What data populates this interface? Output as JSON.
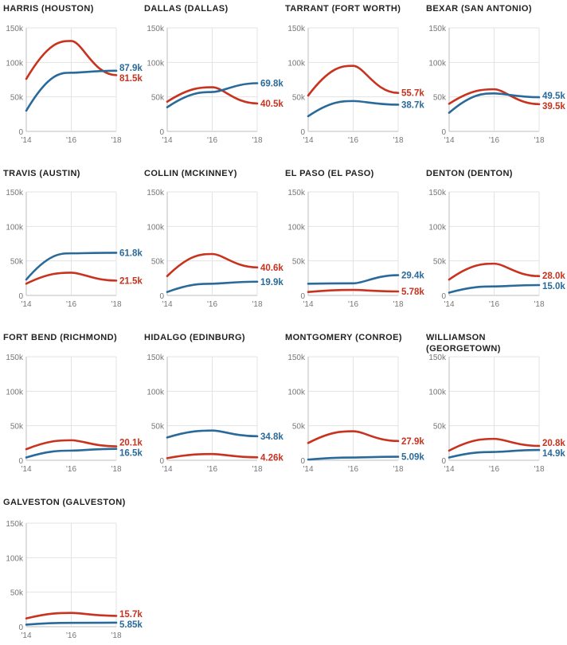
{
  "colors": {
    "red": "#c8321e",
    "blue": "#2a6a9a",
    "grid": "#e3e3e3",
    "axis": "#bdbdbd",
    "tick": "#777777",
    "title": "#222222"
  },
  "chart_data": [
    {
      "type": "line",
      "title": [
        "HARRIS (HOUSTON)"
      ],
      "x": [
        "'14",
        "'16",
        "'18"
      ],
      "ylim": [
        0,
        150000
      ],
      "yticks": [
        "0",
        "50k",
        "100k",
        "150k"
      ],
      "y_tick_values": [
        0,
        50000,
        100000,
        150000
      ],
      "series": [
        {
          "color": "red",
          "values": [
            76000,
            131000,
            81500
          ],
          "label": "81.5k"
        },
        {
          "color": "blue",
          "values": [
            30000,
            85000,
            87900
          ],
          "label": "87.9k"
        }
      ]
    },
    {
      "type": "line",
      "title": [
        "DALLAS (DALLAS)"
      ],
      "x": [
        "'14",
        "'16",
        "'18"
      ],
      "ylim": [
        0,
        150000
      ],
      "series": [
        {
          "color": "red",
          "values": [
            43000,
            64000,
            40500
          ],
          "label": "40.5k"
        },
        {
          "color": "blue",
          "values": [
            35000,
            57000,
            69800
          ],
          "label": "69.8k"
        }
      ]
    },
    {
      "type": "line",
      "title": [
        "TARRANT (FORT WORTH)"
      ],
      "x": [
        "'14",
        "'16",
        "'18"
      ],
      "ylim": [
        0,
        150000
      ],
      "series": [
        {
          "color": "red",
          "values": [
            52000,
            95000,
            55700
          ],
          "label": "55.7k"
        },
        {
          "color": "blue",
          "values": [
            22000,
            44000,
            38700
          ],
          "label": "38.7k"
        }
      ]
    },
    {
      "type": "line",
      "title": [
        "BEXAR (SAN ANTONIO)"
      ],
      "x": [
        "'14",
        "'16",
        "'18"
      ],
      "ylim": [
        0,
        150000
      ],
      "series": [
        {
          "color": "red",
          "values": [
            40000,
            61000,
            39500
          ],
          "label": "39.5k"
        },
        {
          "color": "blue",
          "values": [
            27000,
            55000,
            49500
          ],
          "label": "49.5k"
        }
      ]
    },
    {
      "type": "line",
      "title": [
        "TRAVIS (AUSTIN)"
      ],
      "x": [
        "'14",
        "'16",
        "'18"
      ],
      "ylim": [
        0,
        150000
      ],
      "series": [
        {
          "color": "red",
          "values": [
            17000,
            33000,
            21500
          ],
          "label": "21.5k"
        },
        {
          "color": "blue",
          "values": [
            23000,
            61000,
            61800
          ],
          "label": "61.8k"
        }
      ]
    },
    {
      "type": "line",
      "title": [
        "COLLIN (MCKINNEY)"
      ],
      "x": [
        "'14",
        "'16",
        "'18"
      ],
      "ylim": [
        0,
        150000
      ],
      "series": [
        {
          "color": "red",
          "values": [
            28000,
            60000,
            40600
          ],
          "label": "40.6k"
        },
        {
          "color": "blue",
          "values": [
            5000,
            17000,
            19900
          ],
          "label": "19.9k"
        }
      ]
    },
    {
      "type": "line",
      "title": [
        "EL PASO (EL PASO)"
      ],
      "x": [
        "'14",
        "'16",
        "'18"
      ],
      "ylim": [
        0,
        150000
      ],
      "series": [
        {
          "color": "red",
          "values": [
            5000,
            8000,
            5780
          ],
          "label": "5.78k"
        },
        {
          "color": "blue",
          "values": [
            17000,
            17500,
            29400
          ],
          "label": "29.4k"
        }
      ]
    },
    {
      "type": "line",
      "title": [
        "DENTON (DENTON)"
      ],
      "x": [
        "'14",
        "'16",
        "'18"
      ],
      "ylim": [
        0,
        150000
      ],
      "series": [
        {
          "color": "red",
          "values": [
            23000,
            46000,
            28000
          ],
          "label": "28.0k"
        },
        {
          "color": "blue",
          "values": [
            4000,
            13000,
            15000
          ],
          "label": "15.0k"
        }
      ]
    },
    {
      "type": "line",
      "title": [
        "FORT BEND (RICHMOND)"
      ],
      "x": [
        "'14",
        "'16",
        "'18"
      ],
      "ylim": [
        0,
        150000
      ],
      "series": [
        {
          "color": "red",
          "values": [
            16000,
            29000,
            20100
          ],
          "label": "20.1k"
        },
        {
          "color": "blue",
          "values": [
            4000,
            14000,
            16500
          ],
          "label": "16.5k"
        }
      ]
    },
    {
      "type": "line",
      "title": [
        "HIDALGO (EDINBURG)"
      ],
      "x": [
        "'14",
        "'16",
        "'18"
      ],
      "ylim": [
        0,
        150000
      ],
      "series": [
        {
          "color": "red",
          "values": [
            3000,
            9000,
            4260
          ],
          "label": "4.26k"
        },
        {
          "color": "blue",
          "values": [
            33000,
            43000,
            34800
          ],
          "label": "34.8k"
        }
      ]
    },
    {
      "type": "line",
      "title": [
        "MONTGOMERY (CONROE)"
      ],
      "x": [
        "'14",
        "'16",
        "'18"
      ],
      "ylim": [
        0,
        150000
      ],
      "series": [
        {
          "color": "red",
          "values": [
            25000,
            42000,
            27900
          ],
          "label": "27.9k"
        },
        {
          "color": "blue",
          "values": [
            1000,
            4000,
            5090
          ],
          "label": "5.09k"
        }
      ]
    },
    {
      "type": "line",
      "title": [
        "WILLIAMSON",
        "(GEORGETOWN)"
      ],
      "x": [
        "'14",
        "'16",
        "'18"
      ],
      "ylim": [
        0,
        150000
      ],
      "series": [
        {
          "color": "red",
          "values": [
            14000,
            31000,
            20800
          ],
          "label": "20.8k"
        },
        {
          "color": "blue",
          "values": [
            4000,
            12000,
            14900
          ],
          "label": "14.9k"
        }
      ]
    },
    {
      "type": "line",
      "title": [
        "GALVESTON (GALVESTON)"
      ],
      "x": [
        "'14",
        "'16",
        "'18"
      ],
      "ylim": [
        0,
        150000
      ],
      "series": [
        {
          "color": "red",
          "values": [
            12000,
            20000,
            15700
          ],
          "label": "15.7k"
        },
        {
          "color": "blue",
          "values": [
            3000,
            5500,
            5850
          ],
          "label": "5.85k"
        }
      ]
    }
  ]
}
